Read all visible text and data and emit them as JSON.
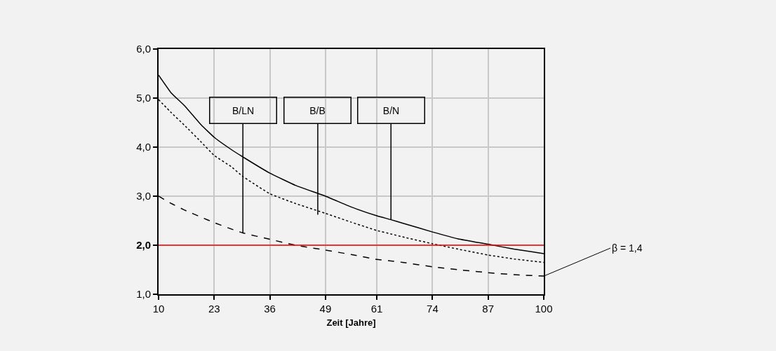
{
  "chart_data": {
    "type": "line",
    "xlabel": "Zeit [Jahre]",
    "x": [
      10,
      13,
      16,
      20,
      23,
      27,
      29.7,
      36,
      42,
      49,
      55,
      61,
      64.3,
      67,
      74,
      80,
      87,
      93,
      100
    ],
    "series": [
      {
        "color": "#000000",
        "line_style": "solid",
        "values": [
          5.47,
          5.1,
          4.85,
          4.45,
          4.2,
          3.95,
          3.8,
          3.47,
          3.22,
          3.0,
          2.78,
          2.6,
          2.52,
          2.45,
          2.27,
          2.13,
          2.02,
          1.92,
          1.83
        ]
      },
      {
        "color": "#000000",
        "line_style": "dotted",
        "values": [
          4.97,
          4.7,
          4.45,
          4.1,
          3.83,
          3.6,
          3.4,
          3.05,
          2.85,
          2.65,
          2.47,
          2.3,
          2.23,
          2.17,
          2.03,
          1.92,
          1.8,
          1.72,
          1.65
        ]
      },
      {
        "color": "#000000",
        "line_style": "dashed",
        "values": [
          3.0,
          2.85,
          2.72,
          2.57,
          2.46,
          2.33,
          2.25,
          2.12,
          2.0,
          1.9,
          1.81,
          1.71,
          1.68,
          1.65,
          1.56,
          1.5,
          1.44,
          1.4,
          1.37
        ]
      }
    ],
    "xlim": [
      10,
      100
    ],
    "xticks": [
      10,
      23,
      36,
      49,
      61,
      74,
      87,
      100
    ],
    "ylim": [
      1,
      6
    ],
    "yticks": [
      {
        "value": 1,
        "label": "1,0"
      },
      {
        "value": 2,
        "label": "2,0"
      },
      {
        "value": 3,
        "label": "3,0"
      },
      {
        "value": 4,
        "label": "4,0"
      },
      {
        "value": 5,
        "label": "5,0"
      },
      {
        "value": 6,
        "label": "6,0"
      }
    ],
    "ref_lines": [
      {
        "axis": "y",
        "value": 2,
        "color": "#ff0000"
      }
    ],
    "annotations": [
      {
        "text": "B/LN",
        "x": 29.7,
        "y": 2.25
      },
      {
        "text": "B/B",
        "x": 47.2,
        "y": 2.62
      },
      {
        "text": "B/N",
        "x": 64.3,
        "y": 2.52
      },
      {
        "text": "β = 1,4",
        "x": 100,
        "y": 1.37
      }
    ],
    "grid": true,
    "marker": "none"
  }
}
